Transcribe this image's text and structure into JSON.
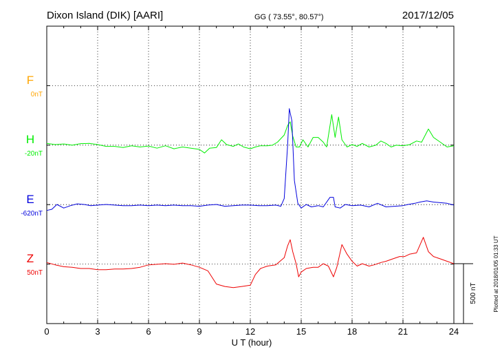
{
  "header": {
    "station": "Dixon Island (DIK)  [AARI]",
    "coords": "GG ( 73.55°,  80.57°)",
    "date": "2017/12/05"
  },
  "footer": {
    "plotted": "Plotted at 2018/01/05 01:33 UT"
  },
  "colors": {
    "F": "#ffa500",
    "H": "#00ee00",
    "E": "#0000dd",
    "Z": "#ee0000"
  },
  "chart_data": {
    "type": "line",
    "xlabel": "U T (hour)",
    "xlim": [
      0,
      24
    ],
    "x_ticks": [
      0,
      3,
      6,
      9,
      12,
      15,
      18,
      21,
      24
    ],
    "scale_bar": "500 nT",
    "channels": [
      {
        "name": "F",
        "baseline": "0nT",
        "color": "#ffa500",
        "points": []
      },
      {
        "name": "H",
        "baseline": "-20nT",
        "color": "#00ee00",
        "points": [
          [
            0.0,
            10
          ],
          [
            0.5,
            0
          ],
          [
            1.0,
            5
          ],
          [
            1.5,
            -5
          ],
          [
            2.0,
            8
          ],
          [
            2.5,
            10
          ],
          [
            3.0,
            0
          ],
          [
            3.5,
            -15
          ],
          [
            4.0,
            -15
          ],
          [
            4.5,
            -25
          ],
          [
            5.0,
            -10
          ],
          [
            5.5,
            -20
          ],
          [
            6.0,
            -12
          ],
          [
            6.5,
            -30
          ],
          [
            7.0,
            -10
          ],
          [
            7.5,
            -35
          ],
          [
            8.0,
            -20
          ],
          [
            8.5,
            -30
          ],
          [
            9.0,
            -40
          ],
          [
            9.3,
            -70
          ],
          [
            9.6,
            -30
          ],
          [
            10.0,
            -25
          ],
          [
            10.3,
            40
          ],
          [
            10.6,
            0
          ],
          [
            11.0,
            -15
          ],
          [
            11.3,
            5
          ],
          [
            11.6,
            -20
          ],
          [
            12.0,
            -35
          ],
          [
            12.3,
            -20
          ],
          [
            12.6,
            -10
          ],
          [
            13.0,
            -10
          ],
          [
            13.3,
            -5
          ],
          [
            13.6,
            20
          ],
          [
            14.0,
            80
          ],
          [
            14.2,
            160
          ],
          [
            14.35,
            190
          ],
          [
            14.5,
            70
          ],
          [
            14.7,
            -20
          ],
          [
            14.9,
            -20
          ],
          [
            15.1,
            40
          ],
          [
            15.4,
            -20
          ],
          [
            15.7,
            60
          ],
          [
            16.0,
            60
          ],
          [
            16.3,
            20
          ],
          [
            16.5,
            -20
          ],
          [
            16.8,
            250
          ],
          [
            17.0,
            60
          ],
          [
            17.2,
            230
          ],
          [
            17.4,
            40
          ],
          [
            17.7,
            -20
          ],
          [
            18.0,
            0
          ],
          [
            18.3,
            -15
          ],
          [
            18.6,
            10
          ],
          [
            19.0,
            -20
          ],
          [
            19.4,
            -5
          ],
          [
            19.7,
            30
          ],
          [
            20.0,
            10
          ],
          [
            20.3,
            -20
          ],
          [
            20.6,
            -5
          ],
          [
            21.0,
            -10
          ],
          [
            21.4,
            0
          ],
          [
            21.8,
            30
          ],
          [
            22.1,
            20
          ],
          [
            22.5,
            130
          ],
          [
            22.8,
            60
          ],
          [
            23.2,
            20
          ],
          [
            23.6,
            -20
          ],
          [
            24.0,
            -10
          ]
        ]
      },
      {
        "name": "E",
        "baseline": "-620nT",
        "color": "#0000dd",
        "points": [
          [
            0.0,
            -50
          ],
          [
            0.3,
            -40
          ],
          [
            0.6,
            0
          ],
          [
            1.0,
            -30
          ],
          [
            1.4,
            -10
          ],
          [
            1.8,
            5
          ],
          [
            2.2,
            0
          ],
          [
            2.6,
            -10
          ],
          [
            3.0,
            -5
          ],
          [
            3.5,
            0
          ],
          [
            4.0,
            -5
          ],
          [
            4.5,
            -10
          ],
          [
            5.0,
            -10
          ],
          [
            5.5,
            -5
          ],
          [
            6.0,
            -10
          ],
          [
            6.5,
            -5
          ],
          [
            7.0,
            -10
          ],
          [
            7.5,
            -5
          ],
          [
            8.0,
            -10
          ],
          [
            8.5,
            -10
          ],
          [
            9.0,
            -15
          ],
          [
            9.5,
            -5
          ],
          [
            10.0,
            0
          ],
          [
            10.5,
            -15
          ],
          [
            11.0,
            -10
          ],
          [
            11.5,
            -5
          ],
          [
            12.0,
            -5
          ],
          [
            12.5,
            -10
          ],
          [
            13.0,
            -10
          ],
          [
            13.5,
            -5
          ],
          [
            13.8,
            -15
          ],
          [
            14.0,
            50
          ],
          [
            14.2,
            500
          ],
          [
            14.3,
            800
          ],
          [
            14.45,
            700
          ],
          [
            14.6,
            200
          ],
          [
            14.8,
            10
          ],
          [
            15.0,
            -30
          ],
          [
            15.3,
            0
          ],
          [
            15.6,
            -20
          ],
          [
            16.0,
            -10
          ],
          [
            16.3,
            -20
          ],
          [
            16.7,
            60
          ],
          [
            16.9,
            60
          ],
          [
            17.0,
            -20
          ],
          [
            17.3,
            -30
          ],
          [
            17.6,
            0
          ],
          [
            18.0,
            -10
          ],
          [
            18.5,
            -5
          ],
          [
            19.0,
            -20
          ],
          [
            19.5,
            10
          ],
          [
            20.0,
            -20
          ],
          [
            20.5,
            -15
          ],
          [
            21.0,
            -10
          ],
          [
            21.3,
            0
          ],
          [
            21.7,
            10
          ],
          [
            22.0,
            20
          ],
          [
            22.4,
            30
          ],
          [
            22.8,
            20
          ],
          [
            23.2,
            15
          ],
          [
            23.6,
            10
          ],
          [
            24.0,
            -5
          ]
        ]
      },
      {
        "name": "Z",
        "baseline": "50nT",
        "color": "#ee0000",
        "points": [
          [
            0.0,
            10
          ],
          [
            0.5,
            -10
          ],
          [
            1.0,
            -25
          ],
          [
            1.5,
            -30
          ],
          [
            2.0,
            -40
          ],
          [
            2.5,
            -40
          ],
          [
            3.0,
            -50
          ],
          [
            3.5,
            -50
          ],
          [
            4.0,
            -45
          ],
          [
            4.5,
            -45
          ],
          [
            5.0,
            -40
          ],
          [
            5.5,
            -30
          ],
          [
            6.0,
            -10
          ],
          [
            6.5,
            -5
          ],
          [
            7.0,
            0
          ],
          [
            7.5,
            -5
          ],
          [
            8.0,
            5
          ],
          [
            8.5,
            -10
          ],
          [
            9.0,
            -30
          ],
          [
            9.5,
            -60
          ],
          [
            10.0,
            -170
          ],
          [
            10.5,
            -190
          ],
          [
            11.0,
            -200
          ],
          [
            11.5,
            -190
          ],
          [
            12.0,
            -180
          ],
          [
            12.3,
            -90
          ],
          [
            12.6,
            -40
          ],
          [
            13.0,
            -20
          ],
          [
            13.5,
            -10
          ],
          [
            14.0,
            50
          ],
          [
            14.2,
            150
          ],
          [
            14.35,
            200
          ],
          [
            14.5,
            100
          ],
          [
            14.7,
            0
          ],
          [
            14.85,
            -110
          ],
          [
            15.0,
            -70
          ],
          [
            15.3,
            -40
          ],
          [
            15.7,
            -30
          ],
          [
            16.0,
            -30
          ],
          [
            16.3,
            0
          ],
          [
            16.6,
            -20
          ],
          [
            16.9,
            -110
          ],
          [
            17.1,
            -30
          ],
          [
            17.4,
            160
          ],
          [
            17.7,
            80
          ],
          [
            18.0,
            20
          ],
          [
            18.3,
            -20
          ],
          [
            18.6,
            0
          ],
          [
            19.0,
            -20
          ],
          [
            19.3,
            -10
          ],
          [
            19.7,
            10
          ],
          [
            20.0,
            20
          ],
          [
            20.4,
            40
          ],
          [
            20.8,
            60
          ],
          [
            21.1,
            60
          ],
          [
            21.4,
            80
          ],
          [
            21.8,
            90
          ],
          [
            22.2,
            220
          ],
          [
            22.5,
            100
          ],
          [
            22.8,
            60
          ],
          [
            23.2,
            40
          ],
          [
            23.6,
            20
          ],
          [
            24.0,
            0
          ]
        ]
      }
    ]
  }
}
